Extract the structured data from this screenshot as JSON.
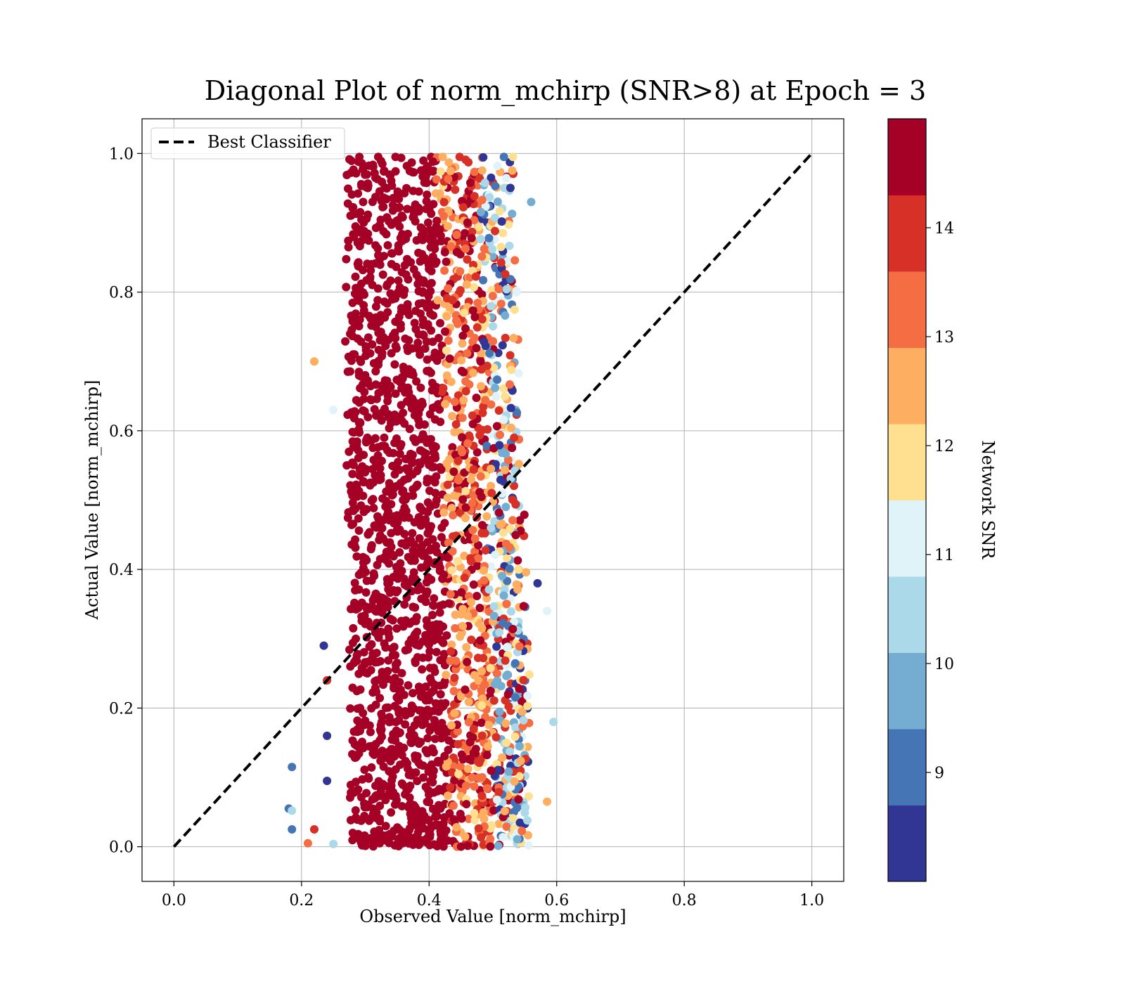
{
  "chart_data": {
    "type": "scatter",
    "title": "Diagonal Plot of norm_mchirp (SNR>8) at Epoch = 3",
    "xlabel": "Observed Value [norm_mchirp]",
    "ylabel": "Actual Value [norm_mchirp]",
    "xlim": [
      -0.05,
      1.05
    ],
    "ylim": [
      -0.05,
      1.05
    ],
    "xticks": [
      "0.0",
      "0.2",
      "0.4",
      "0.6",
      "0.8",
      "1.0"
    ],
    "yticks": [
      "0.0",
      "0.2",
      "0.4",
      "0.6",
      "0.8",
      "1.0"
    ],
    "grid": true,
    "legend": {
      "placement": "top-left",
      "entries": [
        {
          "label": "Best Classifier",
          "style": "dashed",
          "color": "#000000"
        }
      ]
    },
    "reference_line": {
      "label": "Best Classifier",
      "x": [
        0.0,
        1.0
      ],
      "y": [
        0.0,
        1.0
      ]
    },
    "colorbar": {
      "label": "Network SNR",
      "range": [
        8.0,
        15.0
      ],
      "ticks": [
        "9",
        "10",
        "11",
        "12",
        "13",
        "14"
      ],
      "bins": [
        {
          "from": 8.0,
          "to": 8.7,
          "color": "#313695"
        },
        {
          "from": 8.7,
          "to": 9.4,
          "color": "#4575b4"
        },
        {
          "from": 9.4,
          "to": 10.1,
          "color": "#74add1"
        },
        {
          "from": 10.1,
          "to": 10.8,
          "color": "#abd9e9"
        },
        {
          "from": 10.8,
          "to": 11.5,
          "color": "#e0f3f8"
        },
        {
          "from": 11.5,
          "to": 12.2,
          "color": "#fee090"
        },
        {
          "from": 12.2,
          "to": 12.9,
          "color": "#fdae61"
        },
        {
          "from": 12.9,
          "to": 13.6,
          "color": "#f46d43"
        },
        {
          "from": 13.6,
          "to": 14.3,
          "color": "#d73027"
        },
        {
          "from": 14.3,
          "to": 15.0,
          "color": "#a50026"
        }
      ]
    },
    "series": [
      {
        "description_of_distribution": "dense vertical band; observed values roughly 0.26–0.58 for actual values 0–1; low-SNR points concentrated on the right edge of the band",
        "band": {
          "x_min_at_y0": 0.28,
          "x_max_at_y0": 0.56,
          "x_min_at_y1": 0.27,
          "x_max_at_y1": 0.53
        },
        "outliers": [
          {
            "x": 0.22,
            "y": 0.7,
            "snr": 12.6
          },
          {
            "x": 0.25,
            "y": 0.63,
            "snr": 11.2
          },
          {
            "x": 0.235,
            "y": 0.29,
            "snr": 8.2
          },
          {
            "x": 0.24,
            "y": 0.24,
            "snr": 14.0
          },
          {
            "x": 0.24,
            "y": 0.16,
            "snr": 8.5
          },
          {
            "x": 0.185,
            "y": 0.115,
            "snr": 9.0
          },
          {
            "x": 0.24,
            "y": 0.095,
            "snr": 8.3
          },
          {
            "x": 0.18,
            "y": 0.055,
            "snr": 9.3
          },
          {
            "x": 0.185,
            "y": 0.052,
            "snr": 10.5
          },
          {
            "x": 0.185,
            "y": 0.025,
            "snr": 9.0
          },
          {
            "x": 0.22,
            "y": 0.025,
            "snr": 14.0
          },
          {
            "x": 0.21,
            "y": 0.005,
            "snr": 13.2
          },
          {
            "x": 0.25,
            "y": 0.004,
            "snr": 10.5
          },
          {
            "x": 0.595,
            "y": 0.18,
            "snr": 10.5
          },
          {
            "x": 0.585,
            "y": 0.065,
            "snr": 12.6
          },
          {
            "x": 0.585,
            "y": 0.34,
            "snr": 11.2
          },
          {
            "x": 0.57,
            "y": 0.38,
            "snr": 8.2
          },
          {
            "x": 0.56,
            "y": 0.93,
            "snr": 9.8
          }
        ]
      }
    ]
  }
}
